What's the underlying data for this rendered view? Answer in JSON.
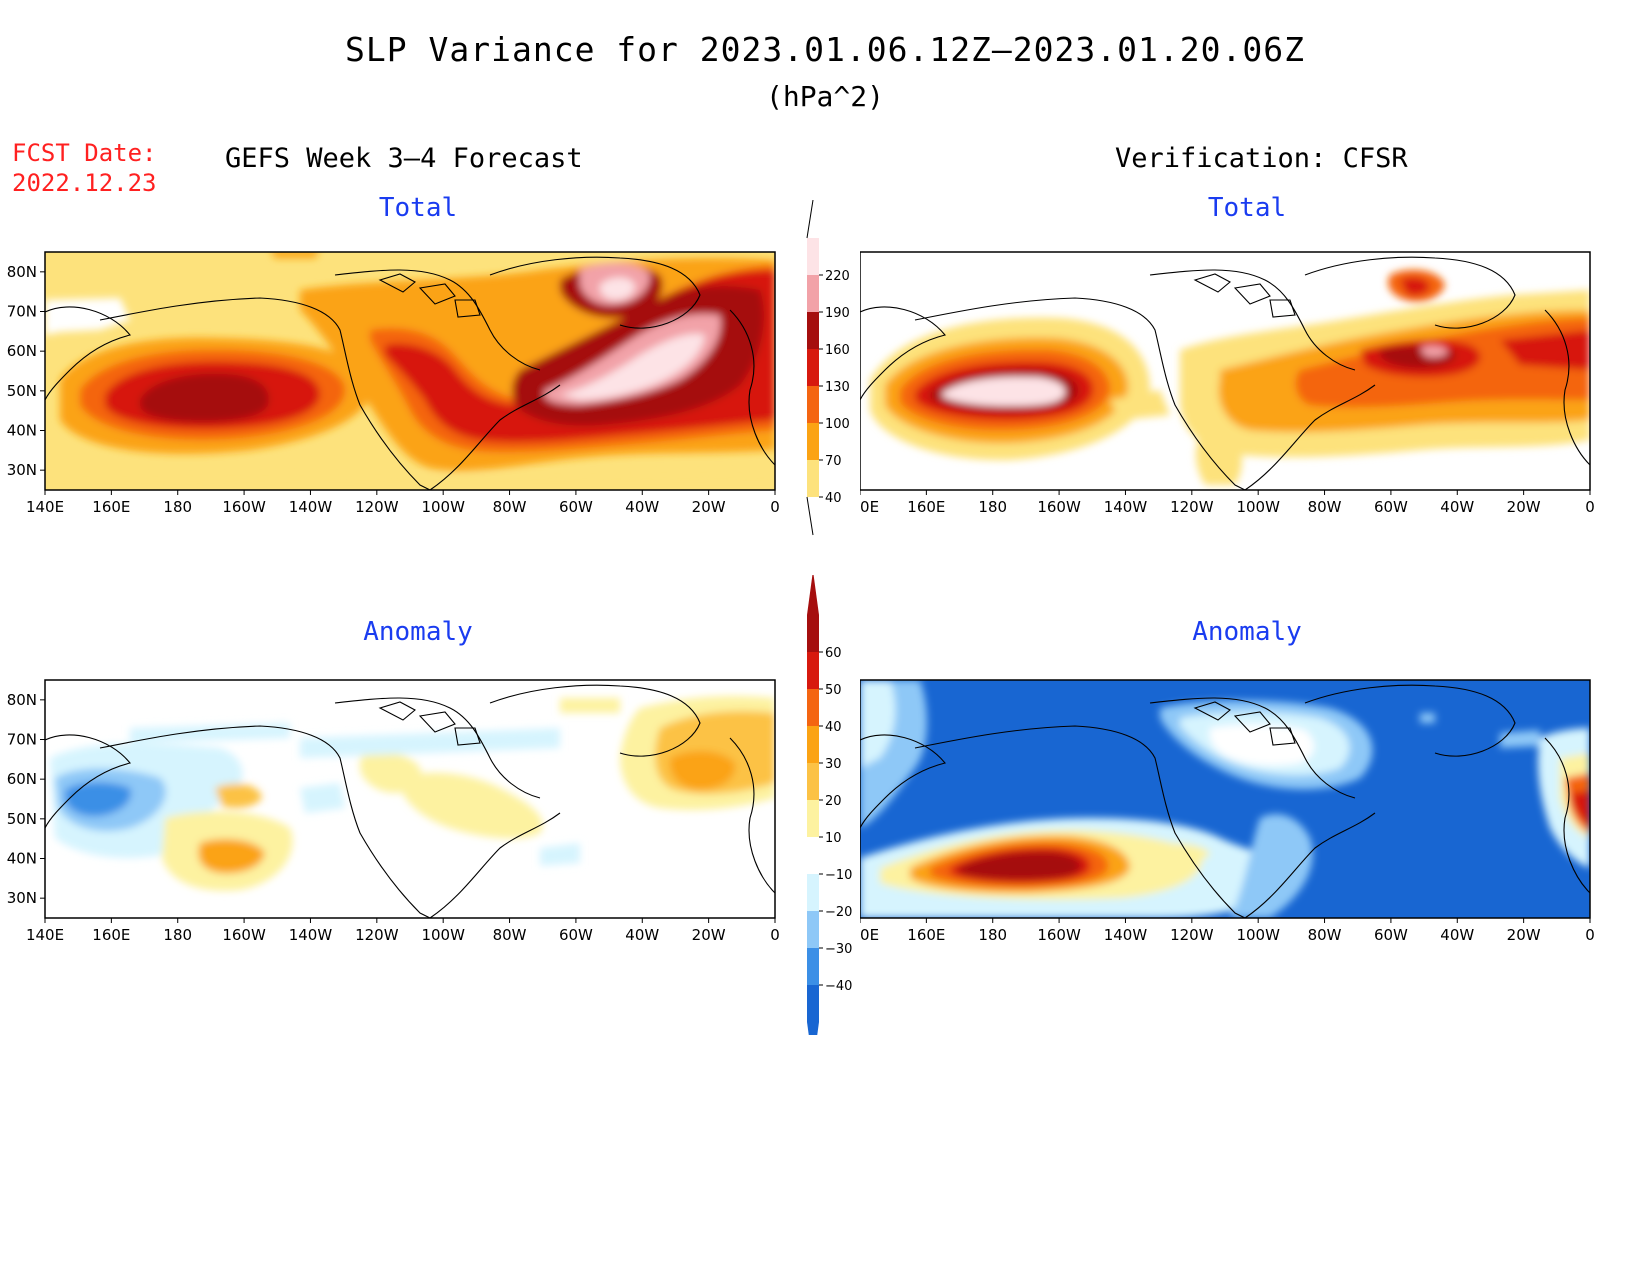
{
  "title": "SLP Variance for 2023.01.06.12Z–2023.01.20.06Z",
  "units": "(hPa^2)",
  "fcst_date_label": "FCST Date:",
  "fcst_date_value": "2022.12.23",
  "left_column_title": "GEFS Week 3–4 Forecast",
  "right_column_title": "Verification: CFSR",
  "panels": [
    {
      "id": "forecast-total",
      "subtitle": "Total"
    },
    {
      "id": "verification-total",
      "subtitle": "Total"
    },
    {
      "id": "forecast-anomaly",
      "subtitle": "Anomaly"
    },
    {
      "id": "verification-anomaly",
      "subtitle": "Anomaly"
    }
  ],
  "map_axes": {
    "lon_ticks": [
      "140E",
      "160E",
      "180",
      "160W",
      "140W",
      "120W",
      "100W",
      "80W",
      "60W",
      "40W",
      "20W",
      "0"
    ],
    "lat_ticks": [
      "80N",
      "70N",
      "60N",
      "50N",
      "40N",
      "30N"
    ]
  },
  "total_colorbar": {
    "labels": [
      "220",
      "190",
      "160",
      "130",
      "100",
      "70",
      "40"
    ],
    "colors": [
      "#fde3e6",
      "#f2a2a8",
      "#a50e0e",
      "#d7190e",
      "#f46511",
      "#fba314",
      "#fde27c"
    ]
  },
  "anomaly_colorbar": {
    "labels": [
      "60",
      "50",
      "40",
      "30",
      "20",
      "10",
      "−10",
      "−20",
      "−30",
      "−40"
    ],
    "colors": [
      "#a50e0e",
      "#d7190e",
      "#f46511",
      "#fba314",
      "#fcc245",
      "#fdf2a0",
      "#ffffff",
      "#d6f4fe",
      "#8ec8f7",
      "#3b8fe6",
      "#1866d2"
    ]
  }
}
